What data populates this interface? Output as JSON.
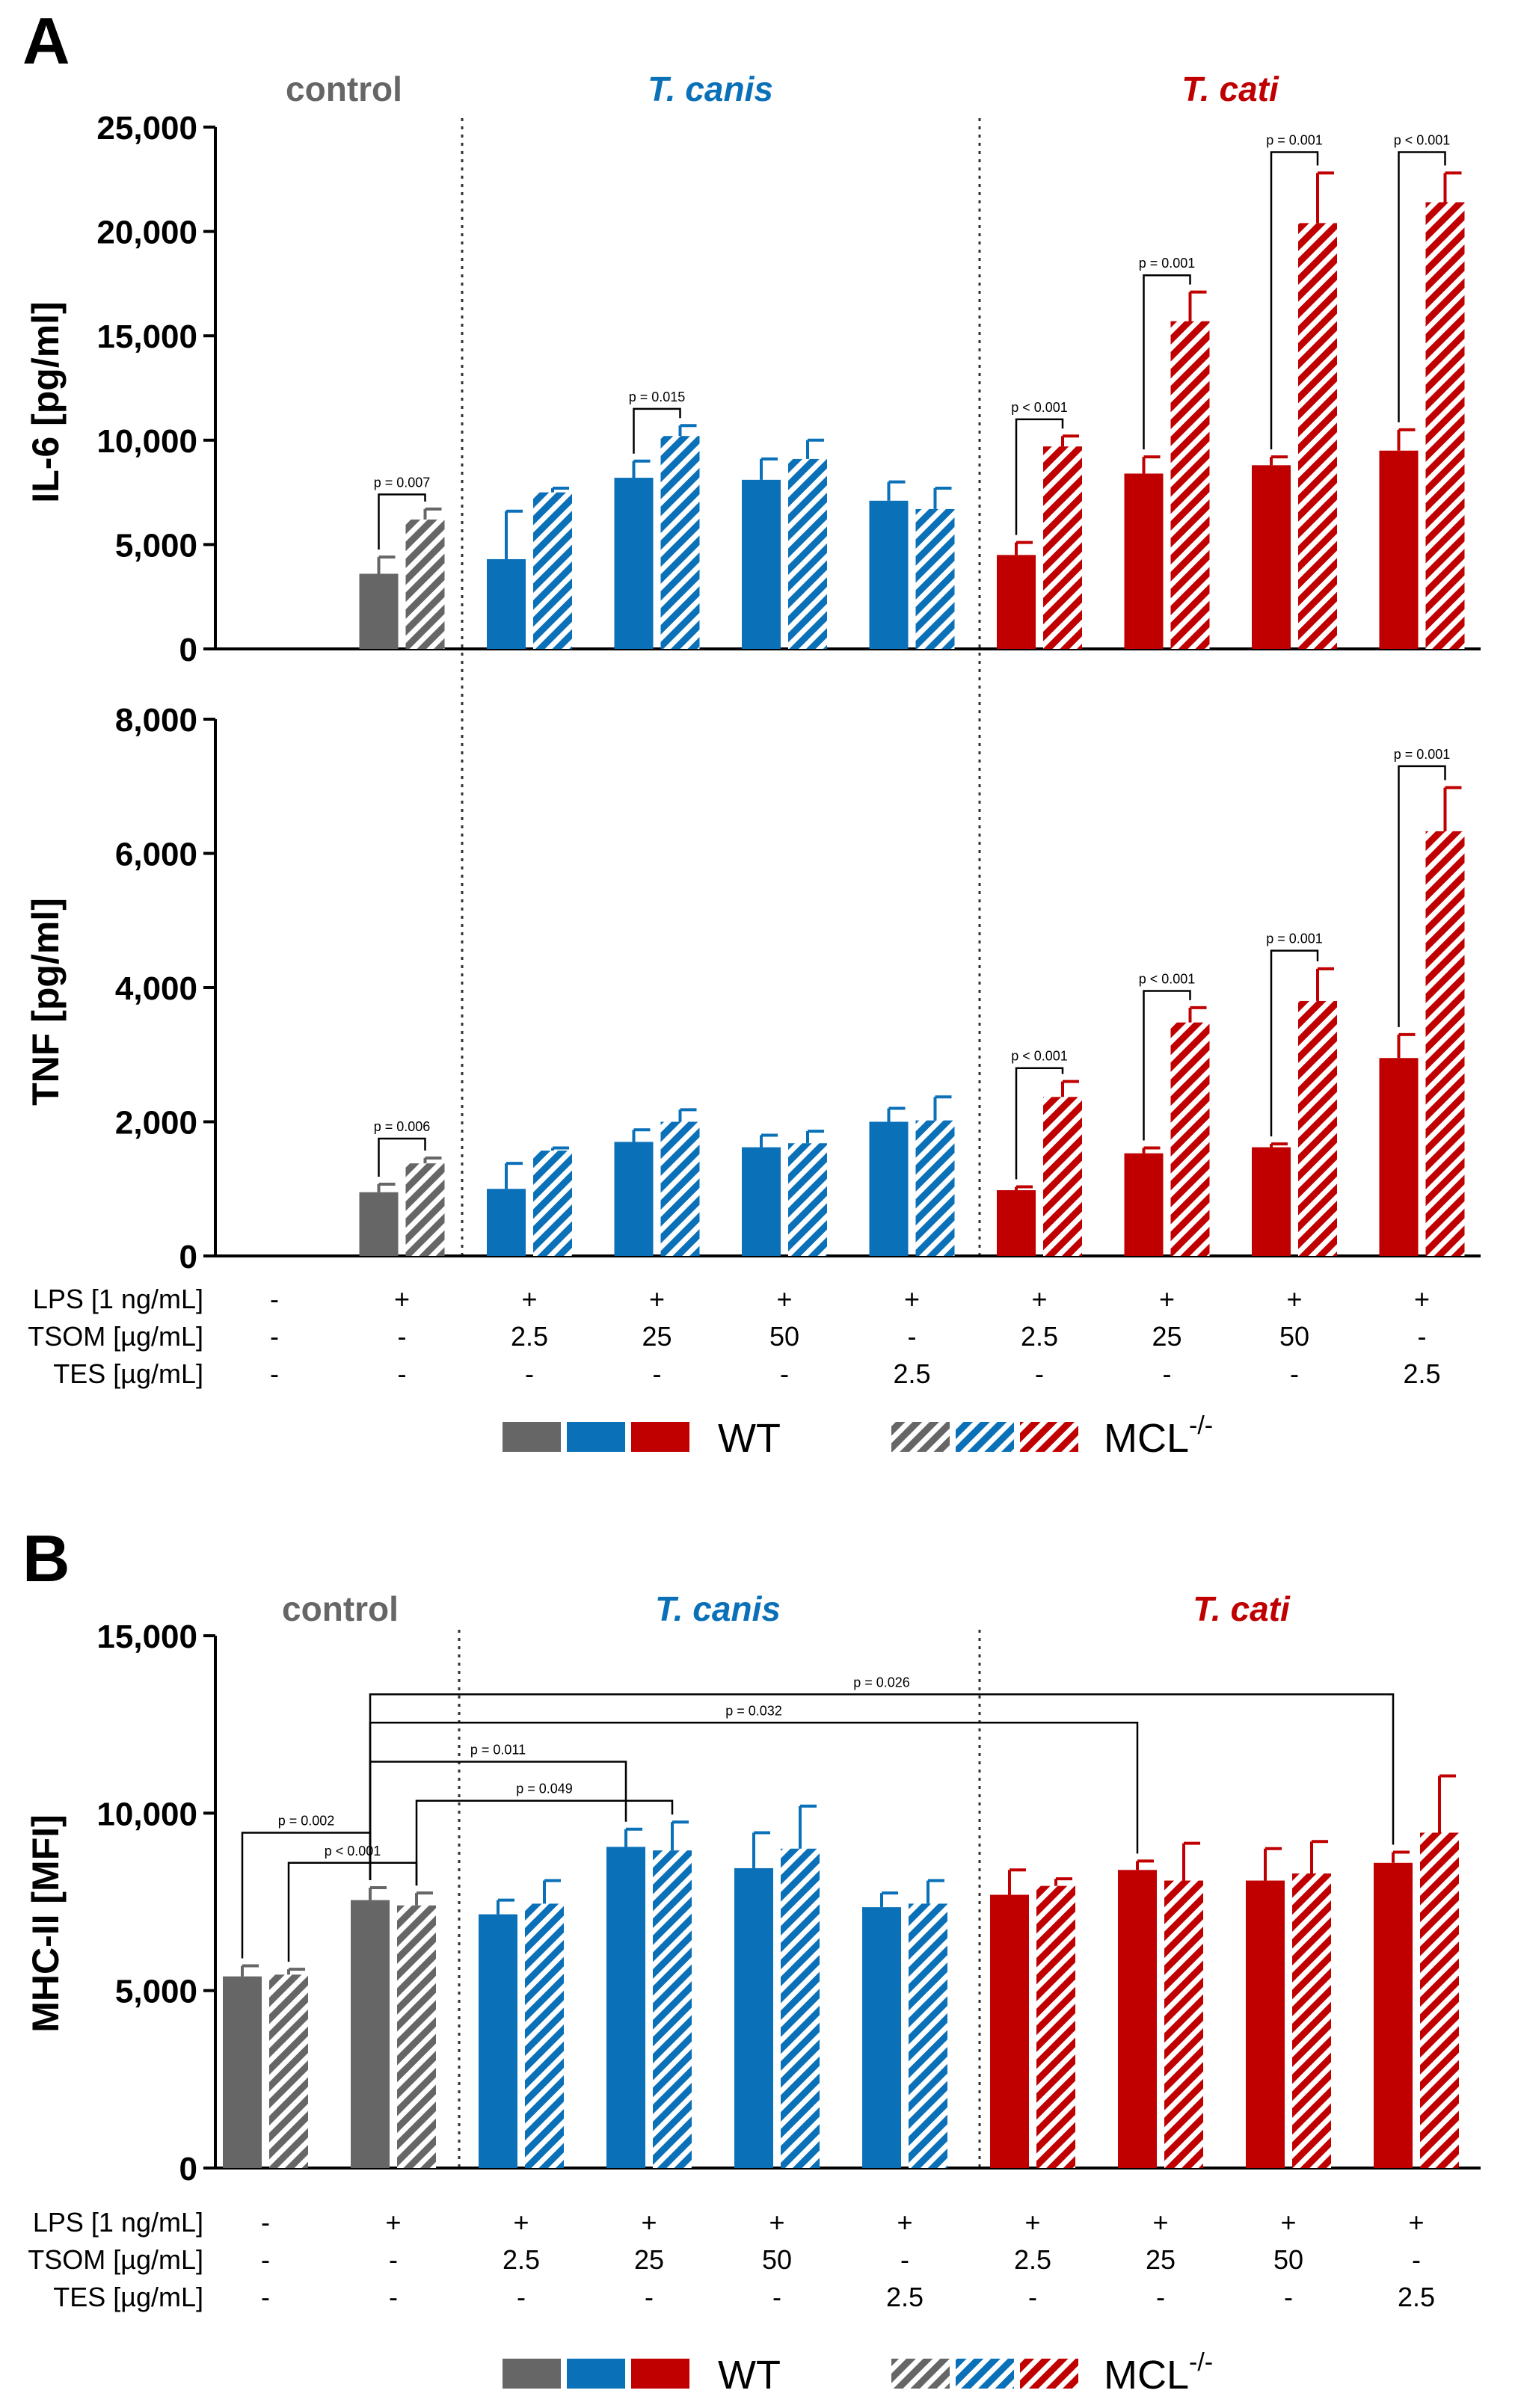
{
  "figure": {
    "panel_labels": [
      "A",
      "B"
    ],
    "group_titles": [
      "control",
      "T. canis",
      "T. cati"
    ],
    "legend": {
      "wt_label": "WT",
      "ko_label_base": "MCL",
      "ko_label_sup": "-/-"
    },
    "condition_table": {
      "row_labels": [
        "LPS [1 ng/mL]",
        "TSOM [µg/mL]",
        "TES [µg/mL]"
      ],
      "LPS": [
        "-",
        "+",
        "+",
        "+",
        "+",
        "+",
        "+",
        "+",
        "+",
        "+"
      ],
      "TSOM": [
        "-",
        "-",
        "2.5",
        "25",
        "50",
        "-",
        "2.5",
        "25",
        "50",
        "-"
      ],
      "TES": [
        "-",
        "-",
        "-",
        "-",
        "-",
        "2.5",
        "-",
        "-",
        "-",
        "2.5"
      ]
    }
  },
  "colors": {
    "control": "#666666",
    "canis": "#0a70b8",
    "cati": "#c00000",
    "axis": "#000000"
  },
  "chart_data": [
    {
      "type": "bar",
      "title": "",
      "ylabel": "IL-6 [pg/ml]",
      "ylim": [
        0,
        25000
      ],
      "yticks": [
        0,
        5000,
        10000,
        15000,
        20000,
        25000
      ],
      "ytick_labels": [
        "0",
        "5,000",
        "10,000",
        "15,000",
        "20,000",
        "25,000"
      ],
      "groups": [
        "c",
        "c",
        "k",
        "k",
        "k",
        "k",
        "t",
        "t",
        "t",
        "t"
      ],
      "series": [
        {
          "name": "WT",
          "values": [
            0,
            3600,
            4300,
            8200,
            8100,
            7100,
            4500,
            8400,
            8800,
            9500
          ],
          "errors": [
            0,
            800,
            2300,
            800,
            1000,
            900,
            600,
            800,
            400,
            1000
          ]
        },
        {
          "name": "MCL-/-",
          "values": [
            0,
            6200,
            7500,
            10200,
            9100,
            6700,
            9700,
            15700,
            20400,
            21400
          ],
          "errors": [
            0,
            500,
            200,
            500,
            900,
            1000,
            500,
            1400,
            2400,
            1400
          ]
        }
      ],
      "brackets": [
        {
          "text": "p = 0.007",
          "cond": 1,
          "y": 7400
        },
        {
          "text": "p = 0.015",
          "cond": 3,
          "y": 11500
        },
        {
          "text": "p < 0.001",
          "cond": 6,
          "y": 11000
        },
        {
          "text": "p = 0.001",
          "cond": 7,
          "y": 17900
        },
        {
          "text": "p = 0.001",
          "cond": 8,
          "y": 23800
        },
        {
          "text": "p < 0.001",
          "cond": 9,
          "y": 23800
        }
      ]
    },
    {
      "type": "bar",
      "title": "",
      "ylabel": "TNF [pg/ml]",
      "ylim": [
        0,
        8000
      ],
      "yticks": [
        0,
        2000,
        4000,
        6000,
        8000
      ],
      "ytick_labels": [
        "0",
        "2,000",
        "4,000",
        "6,000",
        "8,000"
      ],
      "groups": [
        "c",
        "c",
        "k",
        "k",
        "k",
        "k",
        "t",
        "t",
        "t",
        "t"
      ],
      "series": [
        {
          "name": "WT",
          "values": [
            0,
            950,
            1000,
            1700,
            1620,
            2000,
            980,
            1530,
            1620,
            2950
          ],
          "errors": [
            0,
            120,
            380,
            180,
            180,
            200,
            50,
            80,
            50,
            350
          ]
        },
        {
          "name": "MCL-/-",
          "values": [
            0,
            1380,
            1570,
            2000,
            1680,
            2020,
            2370,
            3480,
            3800,
            6330
          ],
          "errors": [
            0,
            80,
            40,
            180,
            180,
            350,
            230,
            220,
            480,
            650
          ]
        }
      ],
      "brackets": [
        {
          "text": "p = 0.006",
          "cond": 1,
          "y": 1750
        },
        {
          "text": "p < 0.001",
          "cond": 6,
          "y": 2800
        },
        {
          "text": "p < 0.001",
          "cond": 7,
          "y": 3950
        },
        {
          "text": "p = 0.001",
          "cond": 8,
          "y": 4550
        },
        {
          "text": "p = 0.001",
          "cond": 9,
          "y": 7300
        }
      ]
    },
    {
      "type": "bar",
      "title": "",
      "ylabel": "MHC-II [MFI]",
      "ylim": [
        0,
        15000
      ],
      "yticks": [
        0,
        5000,
        10000,
        15000
      ],
      "ytick_labels": [
        "0",
        "5,000",
        "10,000",
        "15,000"
      ],
      "groups": [
        "c",
        "c",
        "k",
        "k",
        "k",
        "k",
        "t",
        "t",
        "t",
        "t"
      ],
      "series": [
        {
          "name": "WT",
          "values": [
            5400,
            7550,
            7150,
            9050,
            8450,
            7350,
            7700,
            8400,
            8100,
            8600
          ],
          "errors": [
            300,
            350,
            400,
            500,
            1000,
            400,
            700,
            250,
            900,
            300
          ]
        },
        {
          "name": "MCL-/-",
          "values": [
            5450,
            7400,
            7450,
            8950,
            9000,
            7450,
            7950,
            8100,
            8300,
            9450
          ],
          "errors": [
            150,
            350,
            650,
            800,
            1200,
            650,
            200,
            1050,
            900,
            1600
          ]
        }
      ],
      "sig_lines": [
        {
          "text": "p = 0.002",
          "from": [
            0,
            0
          ],
          "to": [
            1,
            0
          ],
          "y": 9450
        },
        {
          "text": "p < 0.001",
          "from": [
            0,
            1
          ],
          "to": [
            1,
            1
          ],
          "y": 8600
        },
        {
          "text": "p = 0.049",
          "from": [
            1,
            1
          ],
          "to": [
            3,
            1
          ],
          "y": 10350
        },
        {
          "text": "p = 0.011",
          "from": [
            1,
            0
          ],
          "to": [
            3,
            0
          ],
          "y": 11450
        },
        {
          "text": "p = 0.032",
          "from": [
            1,
            0
          ],
          "to": [
            7,
            0
          ],
          "y": 12550
        },
        {
          "text": "p = 0.026",
          "from": [
            1,
            0
          ],
          "to": [
            9,
            0
          ],
          "y": 13350
        }
      ]
    }
  ]
}
